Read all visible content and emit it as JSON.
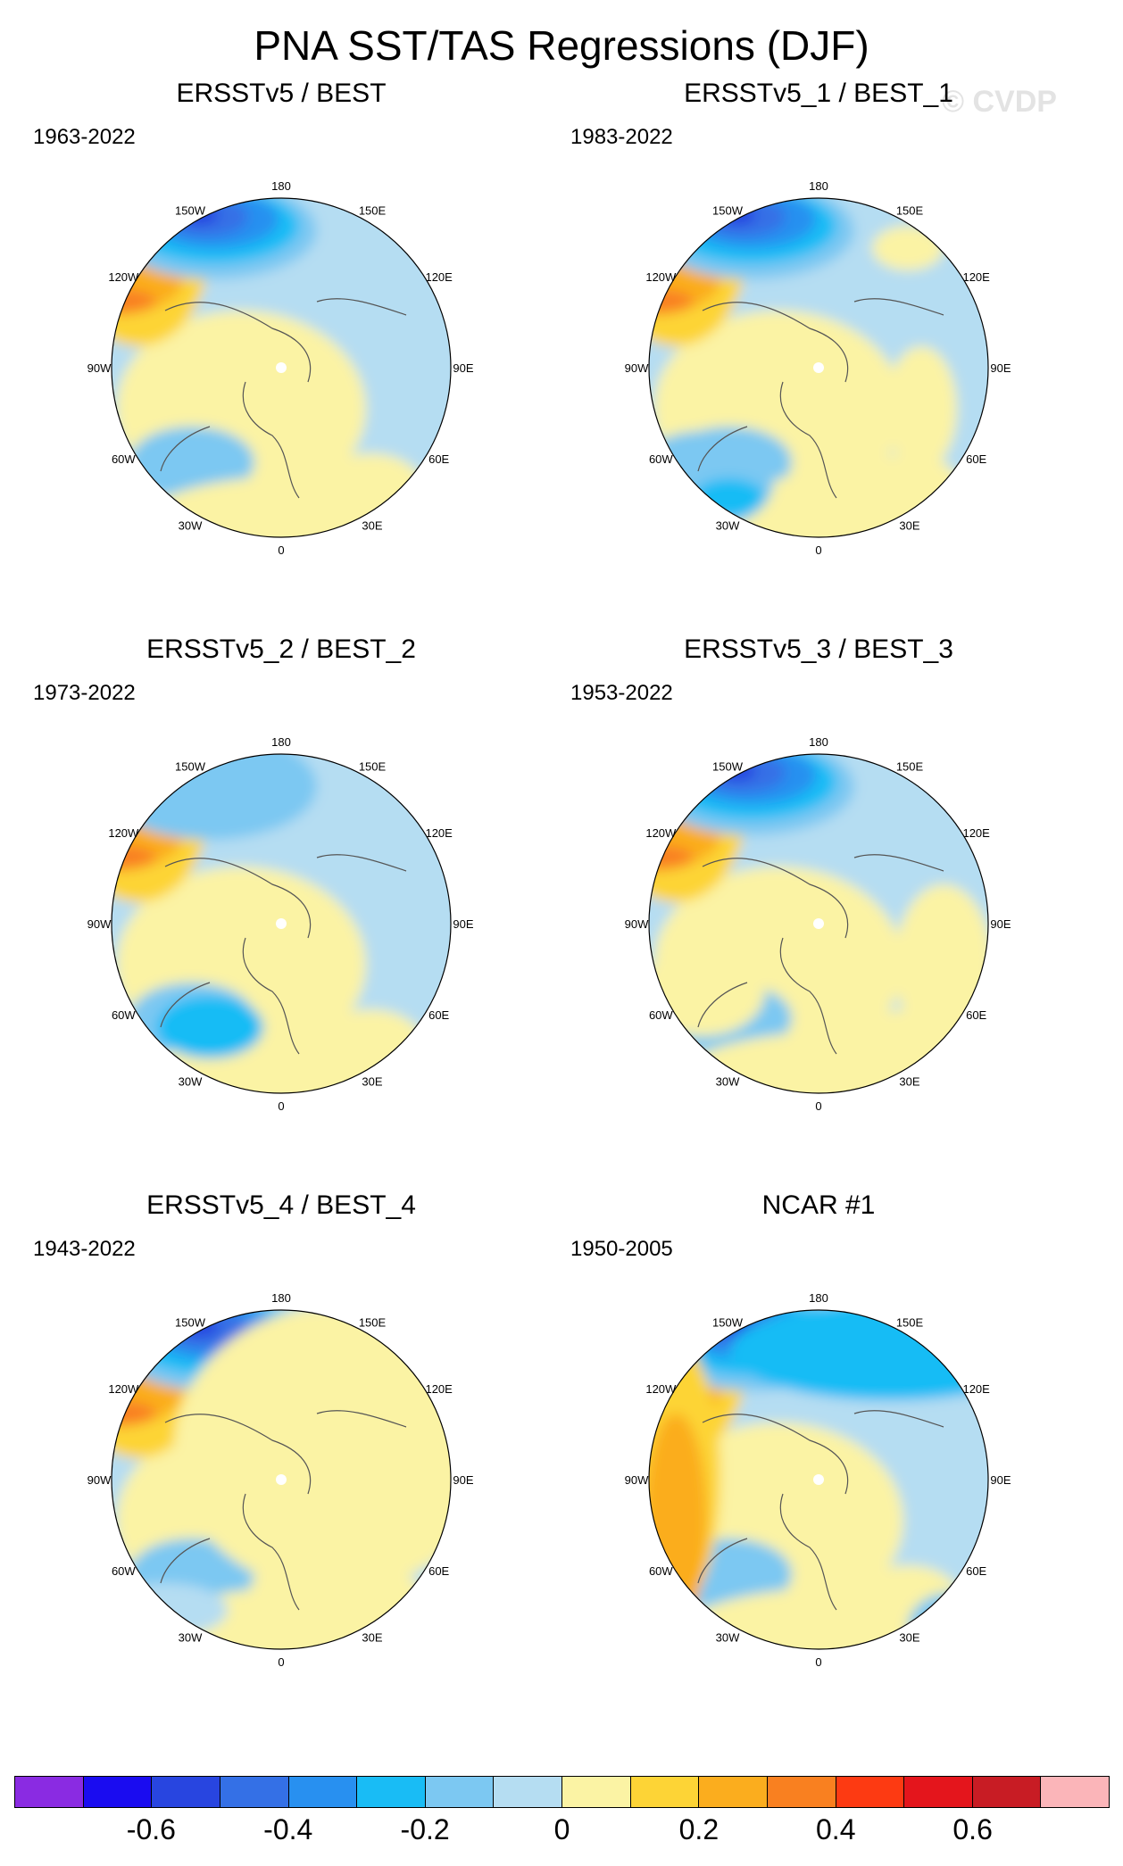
{
  "title": "PNA SST/TAS Regressions (DJF)",
  "watermark": "© CVDP",
  "longitude_labels": [
    "180",
    "150E",
    "120E",
    "90E",
    "60E",
    "30E",
    "0",
    "30W",
    "60W",
    "90W",
    "120W",
    "150W"
  ],
  "panels": [
    {
      "title": "ERSSTv5 / BEST",
      "period": "1963-2022"
    },
    {
      "title": "ERSSTv5_1 / BEST_1",
      "period": "1983-2022"
    },
    {
      "title": "ERSSTv5_2 / BEST_2",
      "period": "1973-2022"
    },
    {
      "title": "ERSSTv5_3 / BEST_3",
      "period": "1953-2022"
    },
    {
      "title": "ERSSTv5_4 / BEST_4",
      "period": "1943-2022"
    },
    {
      "title": "NCAR #1",
      "period": "1950-2005"
    }
  ],
  "colorbar": {
    "colors": [
      "#8a2be2",
      "#1a0cf0",
      "#2845e0",
      "#3470e6",
      "#2890f0",
      "#19bcf5",
      "#7cc8f2",
      "#b5ddf2",
      "#fbf3a4",
      "#fdd436",
      "#fbad1e",
      "#f98020",
      "#fd3a12",
      "#e4151c",
      "#c81c24",
      "#fbb5b9"
    ],
    "tick_labels": [
      "-0.6",
      "-0.4",
      "-0.2",
      "0",
      "0.2",
      "0.4",
      "0.6"
    ]
  }
}
